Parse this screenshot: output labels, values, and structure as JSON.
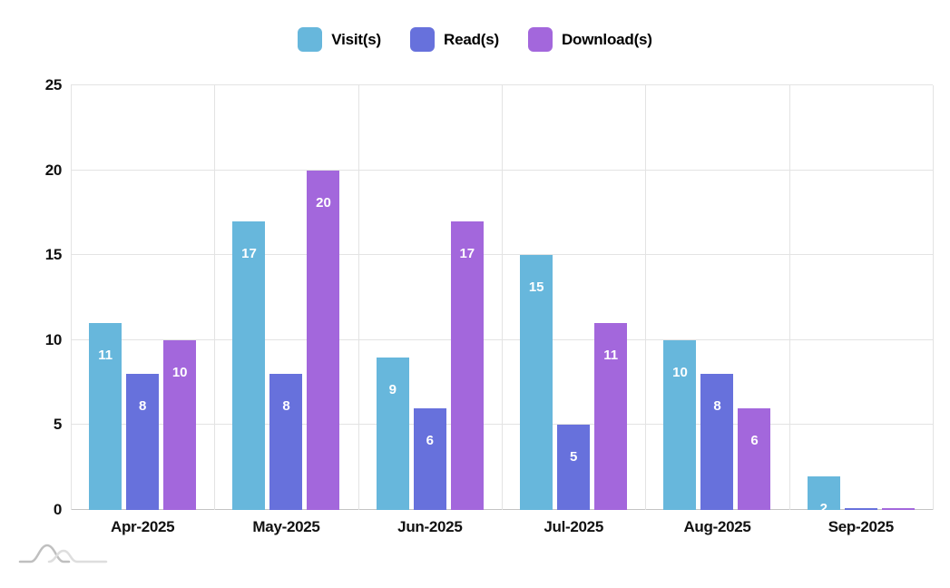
{
  "chart_data": {
    "type": "bar",
    "title": "",
    "categories": [
      "Apr-2025",
      "May-2025",
      "Jun-2025",
      "Jul-2025",
      "Aug-2025",
      "Sep-2025"
    ],
    "series": [
      {
        "name": "Visit(s)",
        "color": "#67B7DC",
        "values": [
          11,
          17,
          9,
          15,
          10,
          2
        ]
      },
      {
        "name": "Read(s)",
        "color": "#6771DC",
        "values": [
          8,
          8,
          6,
          5,
          8,
          0
        ]
      },
      {
        "name": "Download(s)",
        "color": "#A367DC",
        "values": [
          10,
          20,
          17,
          11,
          6,
          0
        ]
      }
    ],
    "xlabel": "",
    "ylabel": "",
    "ylim": [
      0,
      25
    ],
    "yticks": [
      0,
      5,
      10,
      15,
      20,
      25
    ],
    "grid": true,
    "legend_position": "top",
    "bar_value_labels": {
      "position": "inside-top",
      "color": "#ffffff"
    }
  },
  "colors": {
    "background": "#ffffff",
    "gridline": "#e3e3e3",
    "axis_line": "#c4c4c4",
    "tick_label": "#111111"
  },
  "watermark": {
    "icon": "amcharts-logo",
    "stroke_dark": "#bfbfbf",
    "stroke_light": "#dedede"
  }
}
